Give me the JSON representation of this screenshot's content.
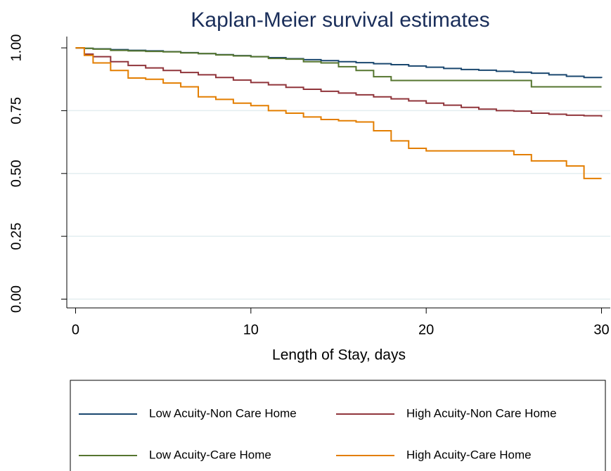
{
  "chart_data": {
    "type": "step",
    "title": "Kaplan-Meier survival estimates",
    "x_label": "Length of Stay, days",
    "x": [
      0,
      0.5,
      1,
      2,
      3,
      4,
      5,
      6,
      7,
      8,
      9,
      10,
      11,
      12,
      13,
      14,
      15,
      16,
      17,
      18,
      19,
      20,
      21,
      22,
      23,
      24,
      25,
      26,
      27,
      28,
      29,
      30
    ],
    "series": [
      {
        "name": "Low Acuity-Non Care Home",
        "color": "#1a476f",
        "values": [
          1,
          0.998,
          0.996,
          0.993,
          0.99,
          0.988,
          0.985,
          0.981,
          0.977,
          0.973,
          0.969,
          0.965,
          0.961,
          0.957,
          0.953,
          0.949,
          0.945,
          0.941,
          0.937,
          0.933,
          0.928,
          0.923,
          0.918,
          0.914,
          0.911,
          0.907,
          0.903,
          0.899,
          0.893,
          0.887,
          0.882,
          0.88
        ]
      },
      {
        "name": "High Acuity-Non Care Home",
        "color": "#90353b",
        "values": [
          1,
          0.975,
          0.965,
          0.945,
          0.93,
          0.92,
          0.91,
          0.902,
          0.893,
          0.882,
          0.872,
          0.862,
          0.853,
          0.843,
          0.835,
          0.827,
          0.82,
          0.813,
          0.805,
          0.797,
          0.789,
          0.78,
          0.772,
          0.763,
          0.756,
          0.75,
          0.748,
          0.74,
          0.736,
          0.732,
          0.73,
          0.725
        ]
      },
      {
        "name": "Low Acuity-Care Home",
        "color": "#55752f",
        "values": [
          1,
          0.998,
          0.995,
          0.99,
          0.988,
          0.986,
          0.984,
          0.98,
          0.977,
          0.972,
          0.968,
          0.965,
          0.958,
          0.955,
          0.945,
          0.94,
          0.925,
          0.91,
          0.885,
          0.87,
          0.87,
          0.87,
          0.87,
          0.87,
          0.87,
          0.87,
          0.87,
          0.845,
          0.845,
          0.845,
          0.845,
          0.845
        ]
      },
      {
        "name": "High Acuity-Care Home",
        "color": "#e37e00",
        "values": [
          1,
          0.97,
          0.94,
          0.91,
          0.88,
          0.875,
          0.86,
          0.845,
          0.805,
          0.795,
          0.78,
          0.77,
          0.75,
          0.74,
          0.725,
          0.715,
          0.71,
          0.705,
          0.67,
          0.63,
          0.6,
          0.59,
          0.59,
          0.59,
          0.59,
          0.59,
          0.575,
          0.55,
          0.55,
          0.53,
          0.48,
          0.48
        ]
      }
    ],
    "xlim": [
      -0.5,
      30.5
    ],
    "xticks": [
      0,
      10,
      20,
      30
    ],
    "ylim": [
      -0.035,
      1.045
    ],
    "yticks": [
      {
        "value": 0,
        "label": "0.00"
      },
      {
        "value": 0.25,
        "label": "0.25"
      },
      {
        "value": 0.5,
        "label": "0.50"
      },
      {
        "value": 0.75,
        "label": "0.75"
      },
      {
        "value": 1,
        "label": "1.00"
      }
    ],
    "grid": true
  }
}
